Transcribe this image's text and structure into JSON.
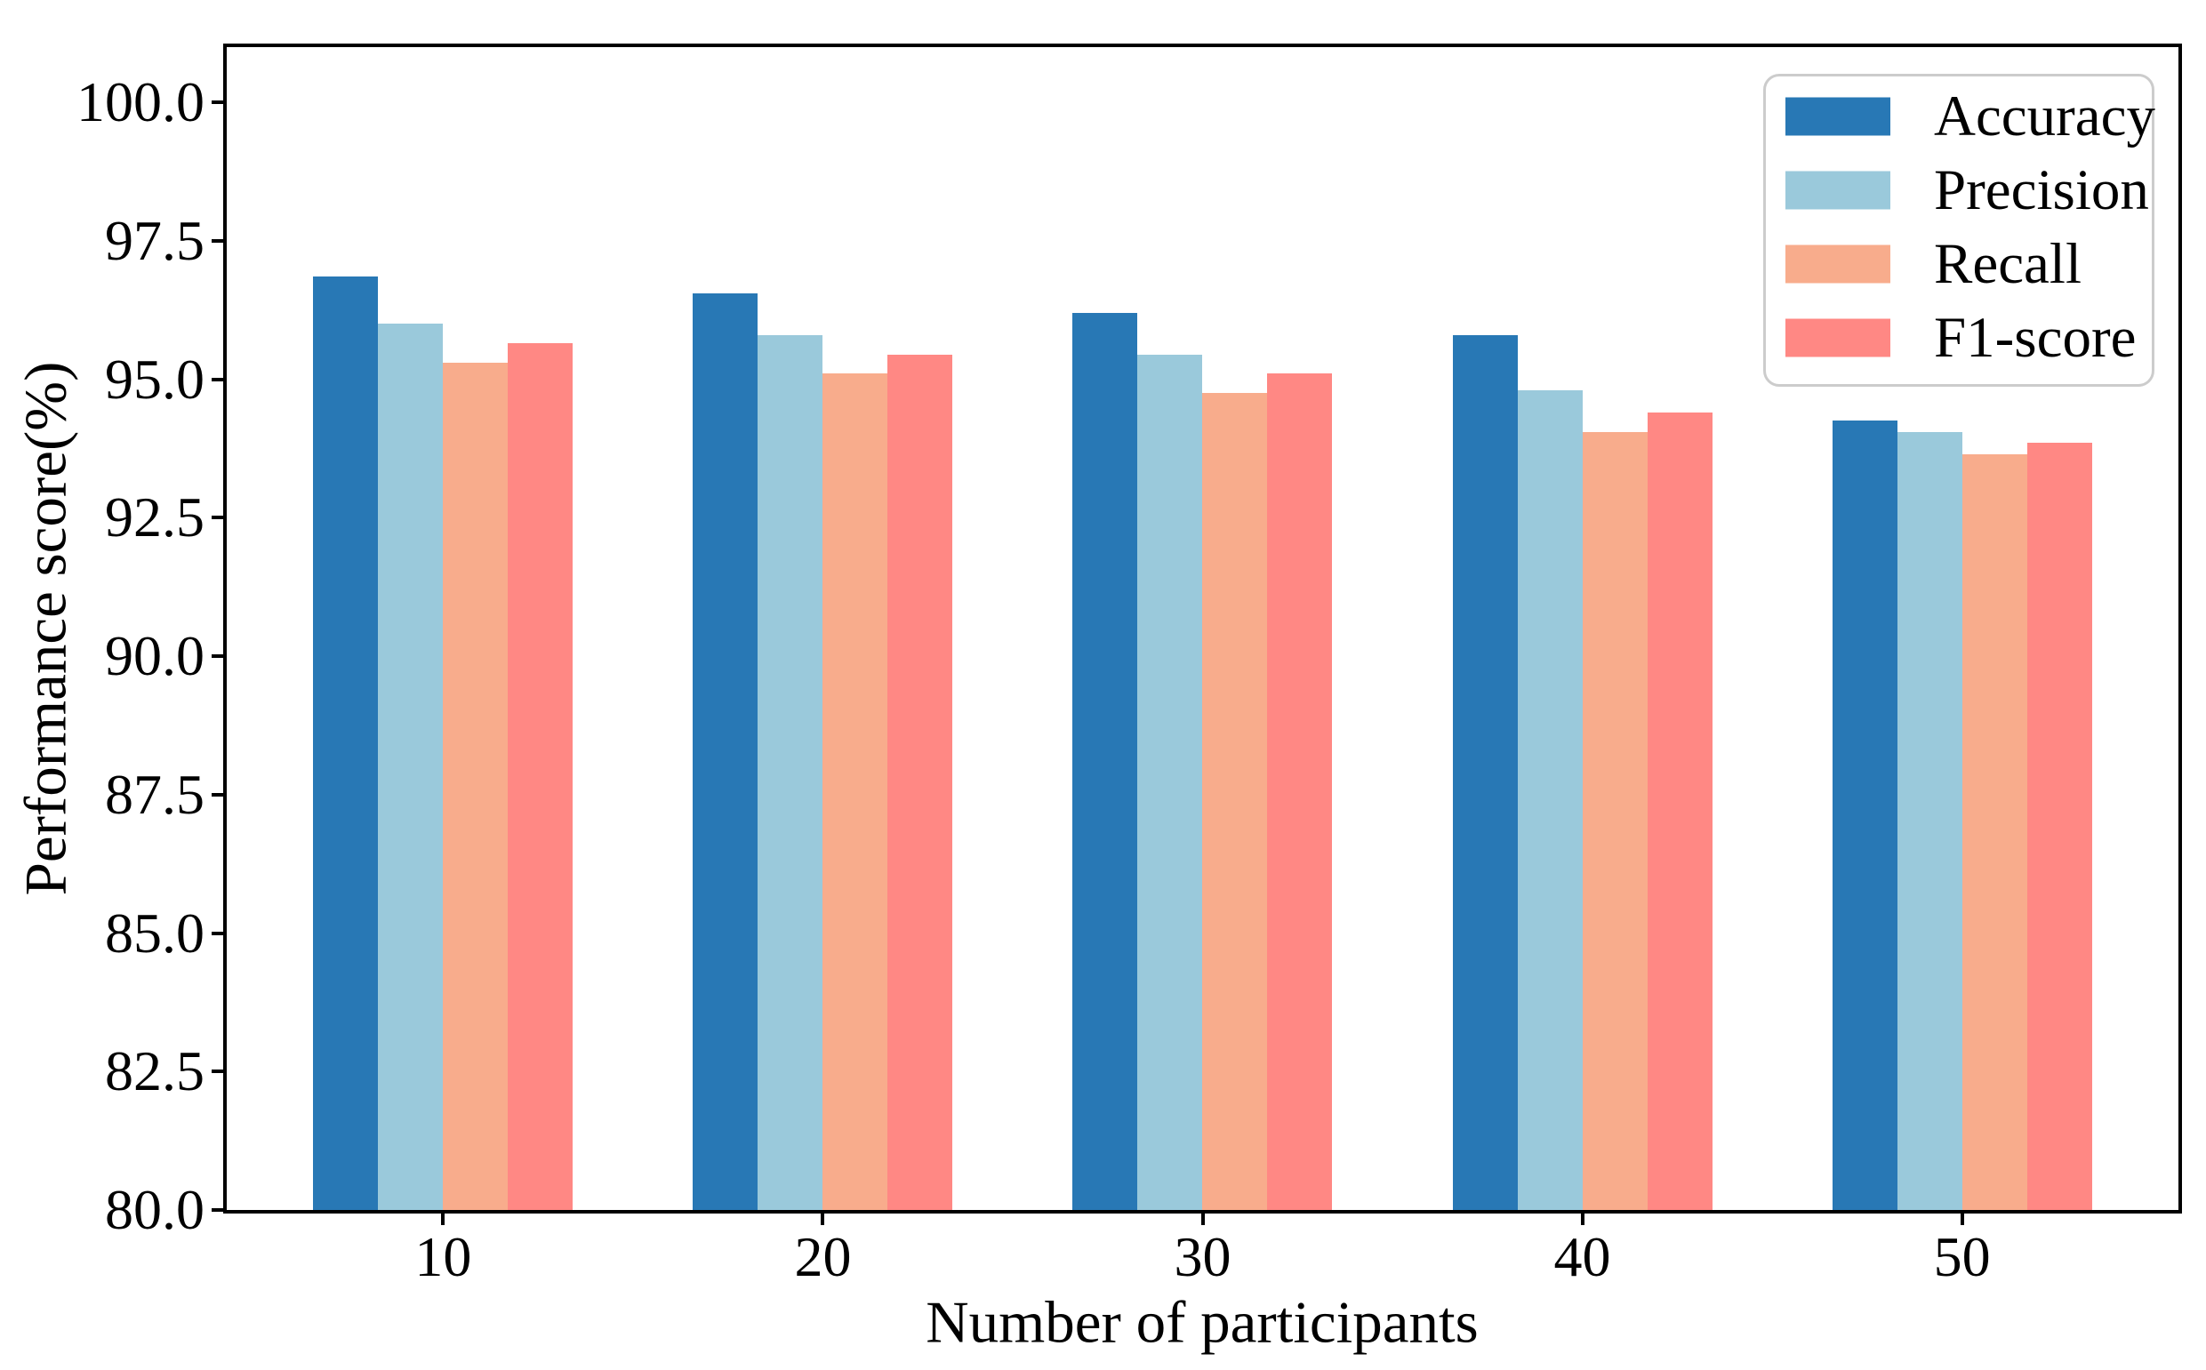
{
  "chart_data": {
    "type": "bar",
    "title": "",
    "xlabel": "Number of participants",
    "ylabel": "Performance score(%)",
    "categories": [
      "10",
      "20",
      "30",
      "40",
      "50"
    ],
    "series": [
      {
        "name": "Accuracy",
        "color": "#2878B5",
        "values": [
          96.85,
          96.55,
          96.2,
          95.8,
          94.25
        ]
      },
      {
        "name": "Precision",
        "color": "#9AC9DB",
        "values": [
          96.0,
          95.8,
          95.45,
          94.8,
          94.05
        ]
      },
      {
        "name": "Recall",
        "color": "#F8AC8C",
        "values": [
          95.3,
          95.1,
          94.75,
          94.05,
          93.65
        ]
      },
      {
        "name": "F1-score",
        "color": "#FF8884",
        "values": [
          95.65,
          95.45,
          95.1,
          94.4,
          93.85
        ]
      }
    ],
    "ylim": [
      80.0,
      101.0
    ],
    "xlim": [
      -0.57,
      4.57
    ],
    "yticks": [
      80.0,
      82.5,
      85.0,
      87.5,
      90.0,
      92.5,
      95.0,
      97.5,
      100.0
    ],
    "ytick_labels": [
      "80.0",
      "82.5",
      "85.0",
      "87.5",
      "90.0",
      "92.5",
      "95.0",
      "97.5",
      "100.0"
    ],
    "bar_width_units": 0.17,
    "grid": false,
    "legend_position": "upper right",
    "spine_color": "#000000",
    "legend_border_color": "#cccccc"
  }
}
